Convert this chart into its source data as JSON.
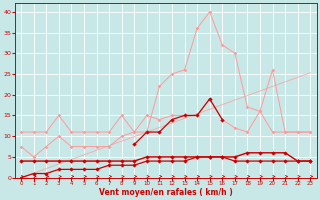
{
  "x": [
    0,
    1,
    2,
    3,
    4,
    5,
    6,
    7,
    8,
    9,
    10,
    11,
    12,
    13,
    14,
    15,
    16,
    17,
    18,
    19,
    20,
    21,
    22,
    23
  ],
  "bg_color": "#C8E8E8",
  "grid_color": "#FFFFFF",
  "line_color_light": "#FF9999",
  "line_color_dark": "#CC0000",
  "xlabel": "Vent moyen/en rafales ( km/h )",
  "xlabel_color": "#CC0000",
  "tick_color": "#CC0000",
  "ylim": [
    0,
    42
  ],
  "xlim": [
    -0.5,
    23.5
  ],
  "yticks": [
    0,
    5,
    10,
    15,
    20,
    25,
    30,
    35,
    40
  ],
  "s1_y": [
    11,
    11,
    11,
    15,
    11,
    11,
    11,
    11,
    15,
    11,
    11,
    22,
    25,
    26,
    36,
    40,
    32,
    30,
    17,
    16,
    26,
    11,
    11,
    11
  ],
  "s2_y": [
    7.5,
    5,
    7.5,
    10,
    7.5,
    7.5,
    7.5,
    7.5,
    10,
    11,
    15,
    14,
    15,
    15,
    15,
    19,
    14,
    12,
    11,
    16,
    11,
    11,
    11,
    11
  ],
  "s3_x": [
    9,
    10,
    11,
    12,
    13,
    14,
    15,
    16
  ],
  "s3_y": [
    8,
    11,
    11,
    14,
    15,
    15,
    19,
    14
  ],
  "s4_y": [
    4,
    4,
    4,
    4,
    4,
    4,
    4,
    4,
    4,
    4,
    5,
    5,
    5,
    5,
    5,
    5,
    5,
    5,
    6,
    6,
    6,
    6,
    4,
    4
  ],
  "s5_y": [
    4,
    4,
    4,
    4,
    4,
    4,
    4,
    4,
    4,
    4,
    5,
    5,
    5,
    5,
    5,
    5,
    5,
    5,
    6,
    6,
    6,
    6,
    4,
    4
  ],
  "s6_y": [
    0,
    1,
    1,
    2,
    2,
    2,
    2,
    3,
    3,
    3,
    4,
    4,
    4,
    4,
    5,
    5,
    5,
    4,
    4,
    4,
    4,
    4,
    4,
    4
  ],
  "trend_y": [
    0,
    1.1,
    2.2,
    3.3,
    4.4,
    5.5,
    6.6,
    7.7,
    8.8,
    9.9,
    11,
    12.1,
    13.2,
    14.3,
    15.4,
    16.5,
    17.6,
    18.7,
    19.8,
    20.9,
    22,
    23.1,
    24.2,
    25.3
  ]
}
